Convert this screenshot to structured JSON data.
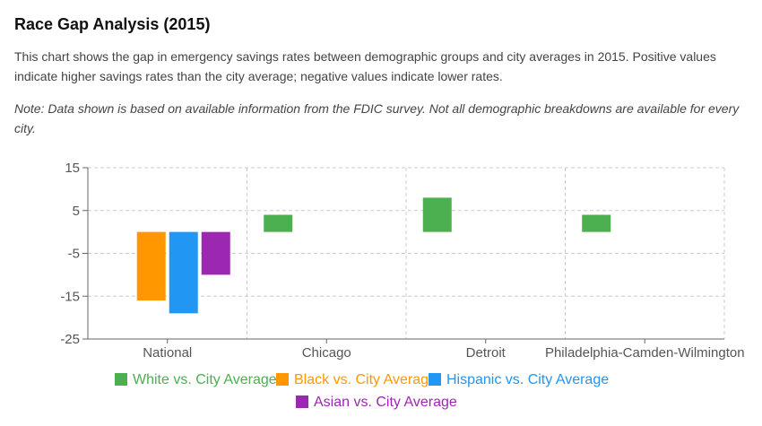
{
  "title": "Race Gap Analysis (2015)",
  "description": "This chart shows the gap in emergency savings rates between demographic groups and city averages in 2015. Positive values indicate higher savings rates than the city average; negative values indicate lower rates.",
  "note": "Note: Data shown is based on available information from the FDIC survey. Not all demographic breakdowns are available for every city.",
  "chart_data": {
    "type": "bar",
    "title": "",
    "xlabel": "",
    "ylabel": "",
    "categories": [
      "National",
      "Chicago",
      "Detroit",
      "Philadelphia-Camden-Wilmington"
    ],
    "ylim": [
      -25,
      15
    ],
    "yticks": [
      15,
      5,
      -5,
      -15,
      -25
    ],
    "grid": true,
    "legend_position": "bottom",
    "series": [
      {
        "name": "White vs. City Average",
        "color": "#4caf50",
        "values": [
          null,
          4,
          8,
          4
        ]
      },
      {
        "name": "Black vs. City Average",
        "color": "#ff9800",
        "values": [
          -16,
          null,
          null,
          null
        ]
      },
      {
        "name": "Hispanic vs. City Average",
        "color": "#2196f3",
        "values": [
          -19,
          null,
          null,
          null
        ]
      },
      {
        "name": "Asian vs. City Average",
        "color": "#9c27b0",
        "values": [
          -10,
          null,
          null,
          null
        ]
      }
    ]
  }
}
